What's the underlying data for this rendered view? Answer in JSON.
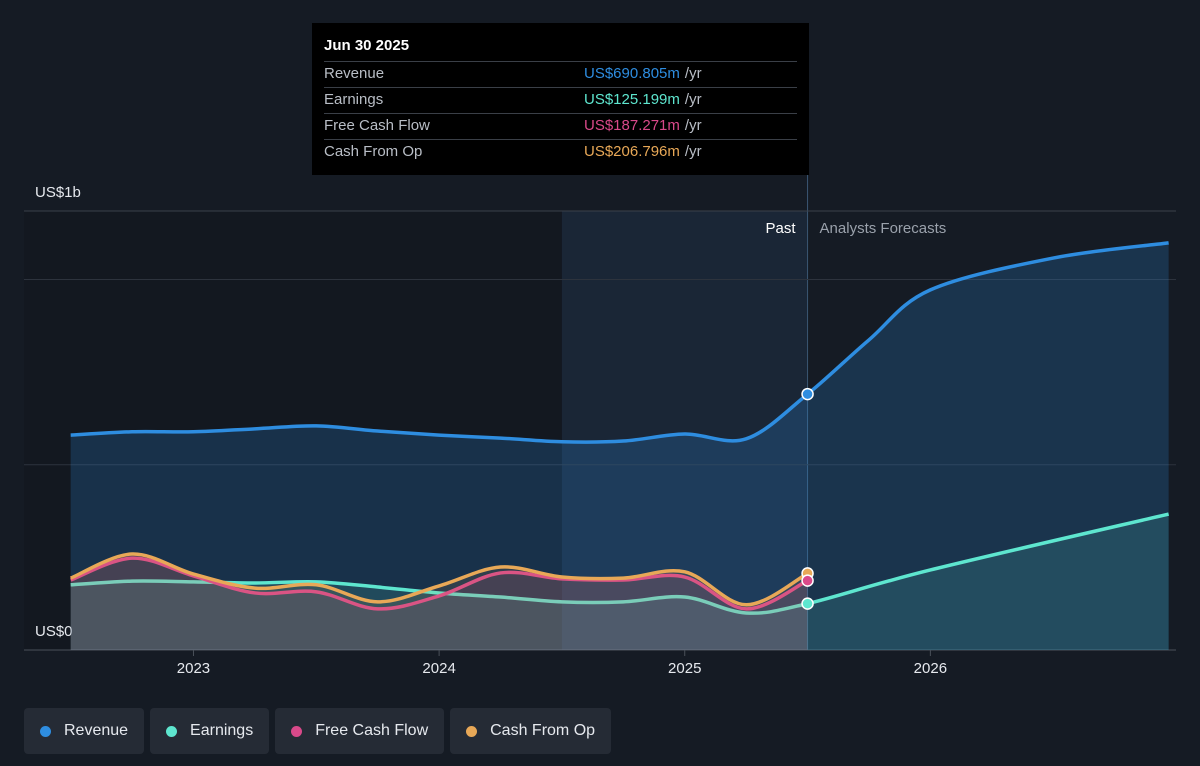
{
  "chart_data": {
    "type": "line",
    "x": [
      2022.5,
      2022.75,
      2023,
      2023.25,
      2023.5,
      2023.75,
      2024,
      2024.25,
      2024.5,
      2024.75,
      2025,
      2025.25,
      2025.5,
      2025.75,
      2026,
      2026.5,
      2026.97
    ],
    "series": [
      {
        "name": "Revenue",
        "color": "#2e8de0",
        "values": [
          580,
          589,
          589,
          597,
          605,
          591,
          580,
          572,
          562,
          564,
          583,
          570,
          690.805,
          837,
          972,
          1058,
          1099
        ]
      },
      {
        "name": "Earnings",
        "color": "#5ee6cf",
        "values": [
          176,
          186,
          184,
          181,
          184,
          170,
          154,
          143,
          130,
          130,
          143,
          100,
          125.199,
          null,
          216,
          null,
          367
        ]
      },
      {
        "name": "Free Cash Flow",
        "color": "#d9498a",
        "values": [
          189,
          248,
          200,
          154,
          157,
          111,
          146,
          208,
          192,
          189,
          197,
          111,
          187.271,
          null,
          null,
          null,
          null
        ]
      },
      {
        "name": "Cash From Op",
        "color": "#e8a857",
        "values": [
          194,
          259,
          205,
          167,
          176,
          130,
          173,
          224,
          197,
          194,
          211,
          122,
          206.796,
          null,
          null,
          null,
          null
        ]
      }
    ],
    "xlim": [
      2022.31,
      2027.0
    ],
    "xticks": [
      2023,
      2024,
      2025,
      2026
    ],
    "ylim": [
      0,
      1185
    ],
    "yticks": [
      {
        "value": 0,
        "label": "US$0"
      },
      {
        "value": 1000,
        "label": "US$1b"
      }
    ],
    "past_label": "Past",
    "forecast_label": "Analysts Forecasts",
    "forecast_start": 2025.5,
    "highlight_start": 2024.5,
    "tooltip": {
      "date": "Jun 30 2025",
      "rows": [
        {
          "label": "Revenue",
          "value": "US$690.805m",
          "unit": "/yr"
        },
        {
          "label": "Earnings",
          "value": "US$125.199m",
          "unit": "/yr"
        },
        {
          "label": "Free Cash Flow",
          "value": "US$187.271m",
          "unit": "/yr"
        },
        {
          "label": "Cash From Op",
          "value": "US$206.796m",
          "unit": "/yr"
        }
      ]
    }
  }
}
